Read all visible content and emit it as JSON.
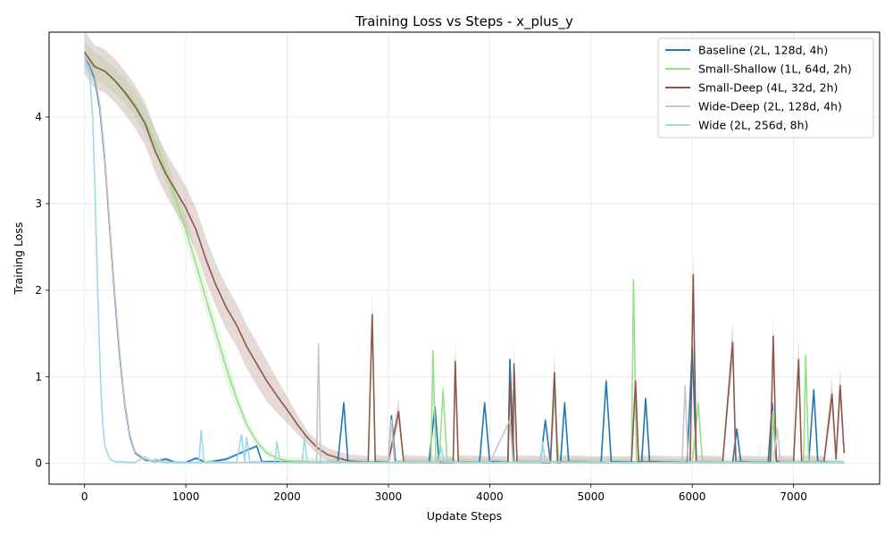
{
  "chart_data": {
    "type": "line",
    "title": "Training Loss vs Steps - x_plus_y",
    "xlabel": "Update Steps",
    "ylabel": "Training Loss",
    "xlim": [
      -350,
      7850
    ],
    "ylim": [
      -0.24,
      4.98
    ],
    "xticks": [
      0,
      1000,
      2000,
      3000,
      4000,
      5000,
      6000,
      7000
    ],
    "yticks": [
      0,
      1,
      2,
      3,
      4
    ],
    "grid": true,
    "legend_position": "top-right",
    "series": [
      {
        "name": "Baseline (2L, 128d, 4h)",
        "color": "#1f77b4",
        "points": [
          [
            0,
            4.7
          ],
          [
            50,
            4.6
          ],
          [
            100,
            4.45
          ],
          [
            150,
            4.1
          ],
          [
            200,
            3.5
          ],
          [
            250,
            2.7
          ],
          [
            300,
            1.9
          ],
          [
            350,
            1.2
          ],
          [
            400,
            0.65
          ],
          [
            450,
            0.3
          ],
          [
            500,
            0.12
          ],
          [
            600,
            0.04
          ],
          [
            700,
            0.02
          ],
          [
            800,
            0.05
          ],
          [
            900,
            0.01
          ],
          [
            1000,
            0.01
          ],
          [
            1100,
            0.06
          ],
          [
            1200,
            0.01
          ],
          [
            1400,
            0.05
          ],
          [
            1700,
            0.2
          ],
          [
            1750,
            0.02
          ],
          [
            2000,
            0.02
          ],
          [
            2500,
            0.01
          ],
          [
            2560,
            0.7
          ],
          [
            2600,
            0.02
          ],
          [
            3000,
            0.01
          ],
          [
            3030,
            0.55
          ],
          [
            3070,
            0.02
          ],
          [
            3400,
            0.01
          ],
          [
            3460,
            0.65
          ],
          [
            3500,
            0.02
          ],
          [
            3900,
            0.01
          ],
          [
            3950,
            0.7
          ],
          [
            4000,
            0.02
          ],
          [
            4180,
            0.01
          ],
          [
            4200,
            1.2
          ],
          [
            4240,
            0.02
          ],
          [
            4500,
            0.01
          ],
          [
            4550,
            0.5
          ],
          [
            4600,
            0.02
          ],
          [
            4700,
            0.01
          ],
          [
            4740,
            0.7
          ],
          [
            4780,
            0.02
          ],
          [
            5100,
            0.01
          ],
          [
            5150,
            0.95
          ],
          [
            5200,
            0.02
          ],
          [
            5500,
            0.01
          ],
          [
            5540,
            0.75
          ],
          [
            5580,
            0.02
          ],
          [
            5950,
            0.01
          ],
          [
            6000,
            1.35
          ],
          [
            6040,
            0.02
          ],
          [
            6400,
            0.01
          ],
          [
            6440,
            0.4
          ],
          [
            6480,
            0.02
          ],
          [
            6750,
            0.01
          ],
          [
            6790,
            0.7
          ],
          [
            6830,
            0.02
          ],
          [
            7150,
            0.01
          ],
          [
            7200,
            0.85
          ],
          [
            7240,
            0.02
          ],
          [
            7500,
            0.01
          ]
        ],
        "band": 0.06
      },
      {
        "name": "Small-Shallow (1L, 64d, 2h)",
        "color": "#98df8a",
        "points": [
          [
            0,
            4.72
          ],
          [
            100,
            4.6
          ],
          [
            200,
            4.52
          ],
          [
            300,
            4.42
          ],
          [
            400,
            4.3
          ],
          [
            500,
            4.15
          ],
          [
            600,
            3.95
          ],
          [
            700,
            3.7
          ],
          [
            800,
            3.4
          ],
          [
            900,
            3.05
          ],
          [
            1000,
            2.7
          ],
          [
            1100,
            2.3
          ],
          [
            1200,
            1.9
          ],
          [
            1300,
            1.5
          ],
          [
            1400,
            1.1
          ],
          [
            1500,
            0.75
          ],
          [
            1600,
            0.45
          ],
          [
            1700,
            0.25
          ],
          [
            1800,
            0.12
          ],
          [
            1900,
            0.06
          ],
          [
            2000,
            0.03
          ],
          [
            2200,
            0.02
          ],
          [
            2400,
            0.01
          ],
          [
            3000,
            0.01
          ],
          [
            3420,
            0.01
          ],
          [
            3440,
            1.3
          ],
          [
            3470,
            0.02
          ],
          [
            3500,
            0.01
          ],
          [
            3540,
            0.85
          ],
          [
            3580,
            0.02
          ],
          [
            4000,
            0.01
          ],
          [
            4600,
            0.01
          ],
          [
            4640,
            0.8
          ],
          [
            4680,
            0.02
          ],
          [
            5400,
            0.01
          ],
          [
            5420,
            2.12
          ],
          [
            5450,
            0.02
          ],
          [
            5800,
            0.01
          ],
          [
            6000,
            0.01
          ],
          [
            6060,
            0.7
          ],
          [
            6100,
            0.02
          ],
          [
            6780,
            0.01
          ],
          [
            6800,
            0.6
          ],
          [
            6830,
            0.02
          ],
          [
            7100,
            0.01
          ],
          [
            7120,
            1.25
          ],
          [
            7150,
            0.02
          ],
          [
            7500,
            0.01
          ]
        ],
        "band": 0.15
      },
      {
        "name": "Small-Deep (4L, 32d, 2h)",
        "color": "#8c564b",
        "points": [
          [
            0,
            4.75
          ],
          [
            100,
            4.58
          ],
          [
            200,
            4.53
          ],
          [
            300,
            4.42
          ],
          [
            400,
            4.28
          ],
          [
            500,
            4.12
          ],
          [
            600,
            3.92
          ],
          [
            700,
            3.6
          ],
          [
            800,
            3.35
          ],
          [
            900,
            3.15
          ],
          [
            1000,
            2.95
          ],
          [
            1100,
            2.7
          ],
          [
            1200,
            2.35
          ],
          [
            1300,
            2.05
          ],
          [
            1400,
            1.8
          ],
          [
            1500,
            1.6
          ],
          [
            1600,
            1.35
          ],
          [
            1700,
            1.15
          ],
          [
            1800,
            0.95
          ],
          [
            1900,
            0.78
          ],
          [
            2000,
            0.62
          ],
          [
            2100,
            0.45
          ],
          [
            2200,
            0.3
          ],
          [
            2300,
            0.18
          ],
          [
            2400,
            0.1
          ],
          [
            2600,
            0.03
          ],
          [
            2800,
            0.01
          ],
          [
            2840,
            1.72
          ],
          [
            2870,
            0.02
          ],
          [
            3000,
            0.01
          ],
          [
            3100,
            0.6
          ],
          [
            3150,
            0.02
          ],
          [
            3400,
            0.01
          ],
          [
            3640,
            0.01
          ],
          [
            3660,
            1.18
          ],
          [
            3690,
            0.02
          ],
          [
            4000,
            0.01
          ],
          [
            4180,
            0.01
          ],
          [
            4200,
            1.0
          ],
          [
            4230,
            0.02
          ],
          [
            4240,
            1.15
          ],
          [
            4270,
            0.02
          ],
          [
            4600,
            0.01
          ],
          [
            4640,
            1.05
          ],
          [
            4670,
            0.02
          ],
          [
            5000,
            0.01
          ],
          [
            5400,
            0.01
          ],
          [
            5440,
            0.95
          ],
          [
            5470,
            0.02
          ],
          [
            5800,
            0.01
          ],
          [
            5980,
            0.01
          ],
          [
            6010,
            2.18
          ],
          [
            6040,
            0.02
          ],
          [
            6300,
            0.01
          ],
          [
            6400,
            1.4
          ],
          [
            6430,
            0.02
          ],
          [
            6600,
            0.01
          ],
          [
            6770,
            0.01
          ],
          [
            6800,
            1.47
          ],
          [
            6830,
            0.02
          ],
          [
            7000,
            0.01
          ],
          [
            7050,
            1.2
          ],
          [
            7080,
            0.02
          ],
          [
            7300,
            0.01
          ],
          [
            7380,
            0.8
          ],
          [
            7420,
            0.05
          ],
          [
            7460,
            0.9
          ],
          [
            7500,
            0.12
          ]
        ],
        "band": 0.25
      },
      {
        "name": "Wide-Deep (2L, 128d, 4h)",
        "color": "#c7c7c7",
        "points": [
          [
            0,
            4.7
          ],
          [
            50,
            4.62
          ],
          [
            100,
            4.48
          ],
          [
            150,
            4.15
          ],
          [
            200,
            3.55
          ],
          [
            250,
            2.75
          ],
          [
            300,
            1.95
          ],
          [
            350,
            1.25
          ],
          [
            400,
            0.68
          ],
          [
            450,
            0.32
          ],
          [
            500,
            0.13
          ],
          [
            600,
            0.05
          ],
          [
            700,
            0.02
          ],
          [
            1000,
            0.01
          ],
          [
            2290,
            0.01
          ],
          [
            2310,
            1.38
          ],
          [
            2330,
            0.02
          ],
          [
            3000,
            0.01
          ],
          [
            3030,
            0.5
          ],
          [
            3060,
            0.02
          ],
          [
            4000,
            0.01
          ],
          [
            4200,
            0.5
          ],
          [
            4230,
            0.02
          ],
          [
            5000,
            0.01
          ],
          [
            5900,
            0.01
          ],
          [
            5930,
            0.9
          ],
          [
            5960,
            0.02
          ],
          [
            6800,
            0.01
          ],
          [
            6840,
            0.4
          ],
          [
            6870,
            0.02
          ],
          [
            7500,
            0.01
          ]
        ],
        "band": 0.05
      },
      {
        "name": "Wide (2L, 256d, 8h)",
        "color": "#9edae5",
        "points": [
          [
            0,
            4.68
          ],
          [
            50,
            4.5
          ],
          [
            80,
            4.0
          ],
          [
            100,
            3.3
          ],
          [
            120,
            2.4
          ],
          [
            140,
            1.6
          ],
          [
            160,
            0.9
          ],
          [
            180,
            0.45
          ],
          [
            200,
            0.2
          ],
          [
            250,
            0.05
          ],
          [
            300,
            0.02
          ],
          [
            500,
            0.01
          ],
          [
            600,
            0.08
          ],
          [
            650,
            0.02
          ],
          [
            700,
            0.05
          ],
          [
            800,
            0.01
          ],
          [
            1130,
            0.01
          ],
          [
            1150,
            0.38
          ],
          [
            1180,
            0.02
          ],
          [
            1500,
            0.01
          ],
          [
            1550,
            0.33
          ],
          [
            1580,
            0.02
          ],
          [
            1600,
            0.3
          ],
          [
            1630,
            0.02
          ],
          [
            1880,
            0.01
          ],
          [
            1900,
            0.25
          ],
          [
            1930,
            0.02
          ],
          [
            2000,
            0.01
          ],
          [
            2150,
            0.01
          ],
          [
            2170,
            0.3
          ],
          [
            2200,
            0.02
          ],
          [
            2500,
            0.01
          ],
          [
            3000,
            0.01
          ],
          [
            3500,
            0.01
          ],
          [
            3520,
            0.2
          ],
          [
            3550,
            0.02
          ],
          [
            4000,
            0.01
          ],
          [
            4500,
            0.01
          ],
          [
            4520,
            0.25
          ],
          [
            4550,
            0.02
          ],
          [
            5000,
            0.01
          ],
          [
            5500,
            0.01
          ],
          [
            6000,
            0.01
          ],
          [
            6500,
            0.01
          ],
          [
            7000,
            0.01
          ],
          [
            7500,
            0.01
          ]
        ],
        "band": 0.05
      }
    ]
  }
}
